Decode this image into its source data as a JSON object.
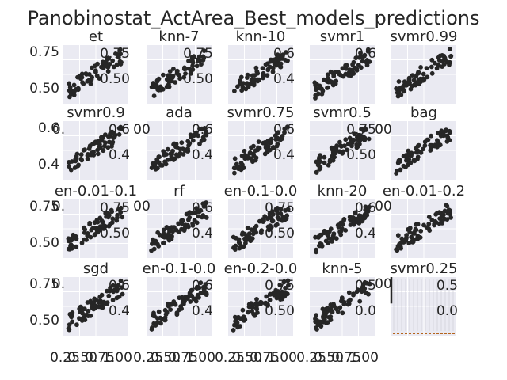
{
  "figure": {
    "title": "Panobinostat_ActArea_Best_models_predictions",
    "background": "#ffffff",
    "panel_background": "#eaeaf2",
    "grid_color": "#ffffff",
    "marker_color": "#262626"
  },
  "chart_data": [
    {
      "type": "scatter",
      "title": "et",
      "y_ticks": [
        "0.75",
        "0.50"
      ],
      "inner_ticks": [
        "0.75",
        "0.50"
      ]
    },
    {
      "type": "scatter",
      "title": "knn-7",
      "inner_ticks": [
        "0.75",
        "0.50"
      ]
    },
    {
      "type": "scatter",
      "title": "knn-10",
      "inner_ticks": [
        "0.6",
        "0.4"
      ]
    },
    {
      "type": "scatter",
      "title": "svmr1",
      "inner_ticks": [
        "0.6"
      ]
    },
    {
      "type": "scatter",
      "title": "svmr0.99",
      "inner_ticks": []
    },
    {
      "type": "scatter",
      "title": "svmr0.9",
      "y_ticks": [
        "0.6",
        "0.4"
      ],
      "inner_ticks": [
        "0.6",
        "0.4"
      ]
    },
    {
      "type": "scatter",
      "title": "ada",
      "inner_ticks": [
        "0.6",
        "0.4"
      ]
    },
    {
      "type": "scatter",
      "title": "svmr0.75",
      "inner_ticks": [
        "0.6",
        "0.4"
      ]
    },
    {
      "type": "scatter",
      "title": "svmr0.5",
      "inner_ticks": [
        "0.75",
        "0.50"
      ]
    },
    {
      "type": "scatter",
      "title": "bag",
      "inner_ticks": []
    },
    {
      "type": "scatter",
      "title": "en-0.01-0.1",
      "y_ticks": [
        "0.75",
        "0.50"
      ],
      "inner_ticks": [
        "0.75",
        "0.50"
      ]
    },
    {
      "type": "scatter",
      "title": "rf",
      "inner_ticks": [
        "0.6",
        "0.4"
      ]
    },
    {
      "type": "scatter",
      "title": "en-0.1-0.0",
      "inner_ticks": [
        "0.75",
        "0.50"
      ]
    },
    {
      "type": "scatter",
      "title": "knn-20",
      "inner_ticks": [
        "0.6",
        "0.4"
      ]
    },
    {
      "type": "scatter",
      "title": "en-0.01-0.2",
      "inner_ticks": []
    },
    {
      "type": "scatter",
      "title": "sgd",
      "y_ticks": [
        "0.75",
        "0.50"
      ],
      "inner_ticks": [
        "0.6",
        "0.4"
      ],
      "x_ticks": [
        "0.25",
        "0.50",
        "0.75",
        "1.00"
      ]
    },
    {
      "type": "scatter",
      "title": "en-0.1-0.0",
      "inner_ticks": [
        "0.6",
        "0.4"
      ],
      "x_ticks": [
        "0.25",
        "0.50",
        "0.75",
        "1.00"
      ]
    },
    {
      "type": "scatter",
      "title": "en-0.2-0.0",
      "inner_ticks": [
        "0.75",
        "0.50"
      ],
      "x_ticks": [
        "0.25",
        "0.50",
        "0.75",
        "1.00"
      ]
    },
    {
      "type": "scatter",
      "title": "knn-5",
      "inner_ticks": [
        "0.5",
        "0.0"
      ],
      "x_ticks": [
        "0.25",
        "0.50",
        "0.75",
        "1.00"
      ]
    },
    {
      "type": "bar",
      "title": "svmr0.25",
      "inner_ticks": [
        "0.5",
        "0.0"
      ]
    }
  ],
  "overlap_labels": {
    "row_bottom_left": "0.",
    "row_bottom_mid": "00",
    "row_bottom_right": "00"
  }
}
